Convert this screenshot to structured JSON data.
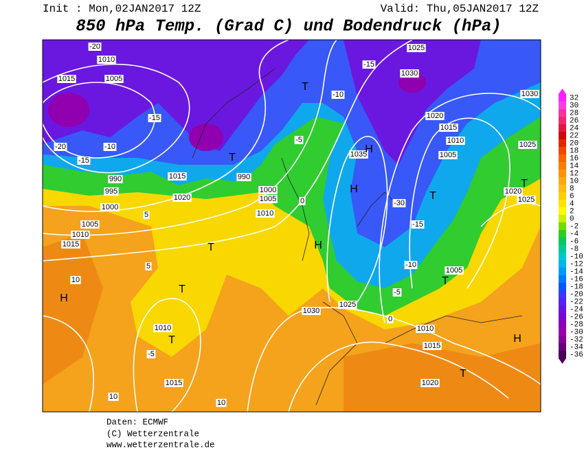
{
  "header": {
    "init": "Init : Mon,02JAN2017 12Z",
    "valid": "Valid: Thu,05JAN2017 12Z",
    "title": "850 hPa Temp. (Grad C) und Bodendruck (hPa)"
  },
  "colorbar": {
    "items": [
      {
        "value": 32,
        "color": "#ff20ff"
      },
      {
        "value": 30,
        "color": "#ff40e0"
      },
      {
        "value": 28,
        "color": "#ff30a0"
      },
      {
        "value": 26,
        "color": "#f02870"
      },
      {
        "value": 24,
        "color": "#e01840"
      },
      {
        "value": 22,
        "color": "#d00808"
      },
      {
        "value": 20,
        "color": "#e02800"
      },
      {
        "value": 18,
        "color": "#f04800"
      },
      {
        "value": 16,
        "color": "#f86400"
      },
      {
        "value": 14,
        "color": "#fc7c00"
      },
      {
        "value": 12,
        "color": "#fc9400"
      },
      {
        "value": 10,
        "color": "#fca810"
      },
      {
        "value": 8,
        "color": "#fcbc10"
      },
      {
        "value": 6,
        "color": "#fcd000"
      },
      {
        "value": 4,
        "color": "#fce400"
      },
      {
        "value": 2,
        "color": "#fcfc00"
      },
      {
        "value": 0,
        "color": "#c8f000"
      },
      {
        "value": -2,
        "color": "#70dc00"
      },
      {
        "value": -4,
        "color": "#30cc20"
      },
      {
        "value": -6,
        "color": "#00c860"
      },
      {
        "value": -8,
        "color": "#00c898"
      },
      {
        "value": -10,
        "color": "#00c8c8"
      },
      {
        "value": -12,
        "color": "#00b4ec"
      },
      {
        "value": -14,
        "color": "#0098ff"
      },
      {
        "value": -16,
        "color": "#0078ff"
      },
      {
        "value": -18,
        "color": "#0058ff"
      },
      {
        "value": -20,
        "color": "#3838ff"
      },
      {
        "value": -22,
        "color": "#5424f0"
      },
      {
        "value": -24,
        "color": "#6814e0"
      },
      {
        "value": -26,
        "color": "#7808cc"
      },
      {
        "value": -28,
        "color": "#8800bc"
      },
      {
        "value": -30,
        "color": "#9800ac"
      },
      {
        "value": -32,
        "color": "#880098"
      },
      {
        "value": -34,
        "color": "#680078"
      },
      {
        "value": -36,
        "color": "#480058"
      }
    ]
  },
  "map_labels": [
    "-20",
    "1010",
    "1015",
    "1005",
    "-15",
    "-20",
    "-15",
    "-10",
    "990",
    "995",
    "1000",
    "1005",
    "1010",
    "1015",
    "10",
    "1015",
    "1020",
    "990",
    "1000",
    "1005",
    "1010",
    "-5",
    "-10",
    "-15",
    "1025",
    "1030",
    "1020",
    "1015",
    "1010",
    "1005",
    "1035",
    "-30",
    "-15",
    "-10",
    "-5",
    "1005",
    "1030",
    "1025",
    "1010",
    "-5",
    "1015",
    "1010",
    "1015",
    "1020",
    "1025",
    "1020",
    "1030",
    "1025",
    "10",
    "10",
    "5",
    "5",
    "0",
    "0"
  ],
  "pressure_centers": [
    "H",
    "T",
    "T",
    "T",
    "H",
    "H",
    "H",
    "T",
    "T",
    "H",
    "T",
    "T",
    "T",
    "T"
  ],
  "footer": {
    "source": "Daten: ECMWF",
    "copyright": "(C) Wetterzentrale",
    "url": "www.wetterzentrale.de"
  }
}
